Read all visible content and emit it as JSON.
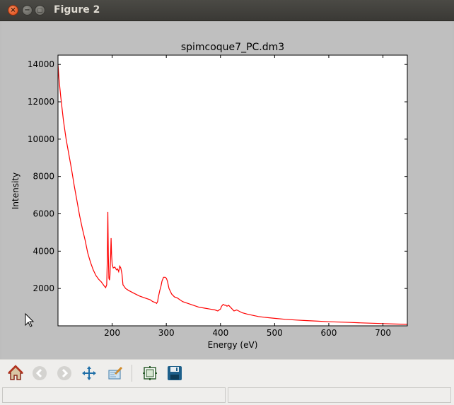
{
  "window": {
    "title": "Figure 2"
  },
  "toolbar": {
    "buttons": [
      {
        "icon": "home-icon",
        "enabled": true
      },
      {
        "icon": "back-arrow-icon",
        "enabled": false
      },
      {
        "icon": "forward-arrow-icon",
        "enabled": false
      },
      {
        "icon": "pan-move-icon",
        "enabled": true
      },
      {
        "icon": "zoom-to-rect-icon",
        "enabled": true
      },
      {
        "icon": "configure-subplots-icon",
        "enabled": true
      },
      {
        "icon": "save-disk-icon",
        "enabled": true
      }
    ]
  },
  "colors": {
    "line": "#ff0000",
    "plot_bg": "#ffffff",
    "figure_bg": "#bfbfbf"
  },
  "chart_data": {
    "type": "line",
    "title": "spimcoque7_PC.dm3",
    "xlabel": "Energy (eV)",
    "ylabel": "Intensity",
    "xlim": [
      100,
      745
    ],
    "ylim": [
      0,
      14500
    ],
    "xticks": [
      200,
      300,
      400,
      500,
      600,
      700
    ],
    "yticks": [
      2000,
      4000,
      6000,
      8000,
      10000,
      12000,
      14000
    ],
    "grid": false,
    "series": [
      {
        "color": "#ff0000",
        "x": [
          100,
          102,
          105,
          110,
          115,
          120,
          125,
          130,
          135,
          140,
          145,
          150,
          155,
          160,
          165,
          170,
          175,
          180,
          185,
          188,
          190,
          191,
          192,
          193,
          194,
          195,
          196,
          197,
          198,
          199,
          200,
          202,
          205,
          208,
          210,
          212,
          214,
          216,
          218,
          220,
          225,
          230,
          240,
          250,
          260,
          270,
          275,
          280,
          282,
          284,
          285,
          288,
          290,
          292,
          295,
          298,
          300,
          302,
          305,
          310,
          315,
          320,
          330,
          340,
          350,
          360,
          370,
          380,
          390,
          395,
          400,
          402,
          405,
          408,
          410,
          412,
          415,
          420,
          425,
          430,
          440,
          450,
          460,
          470,
          480,
          500,
          520,
          540,
          560,
          580,
          600,
          620,
          640,
          660,
          680,
          700,
          720,
          745
        ],
        "y": [
          14000,
          13200,
          12300,
          11000,
          10000,
          9200,
          8400,
          7500,
          6700,
          5900,
          5200,
          4600,
          3900,
          3400,
          3000,
          2700,
          2500,
          2350,
          2150,
          2050,
          2200,
          3500,
          6100,
          3800,
          2550,
          2450,
          2700,
          3600,
          4700,
          3800,
          3300,
          3100,
          3150,
          3000,
          3050,
          2900,
          3200,
          3100,
          2800,
          2200,
          2000,
          1900,
          1750,
          1600,
          1500,
          1400,
          1300,
          1250,
          1200,
          1300,
          1500,
          1900,
          2100,
          2400,
          2600,
          2600,
          2550,
          2400,
          2000,
          1700,
          1550,
          1500,
          1300,
          1200,
          1100,
          1000,
          950,
          900,
          850,
          800,
          900,
          1050,
          1150,
          1100,
          1100,
          1050,
          1100,
          950,
          800,
          850,
          700,
          620,
          560,
          500,
          460,
          400,
          350,
          310,
          280,
          250,
          220,
          200,
          180,
          160,
          140,
          120,
          100,
          80
        ]
      }
    ]
  },
  "status": {
    "left": "",
    "right": ""
  }
}
